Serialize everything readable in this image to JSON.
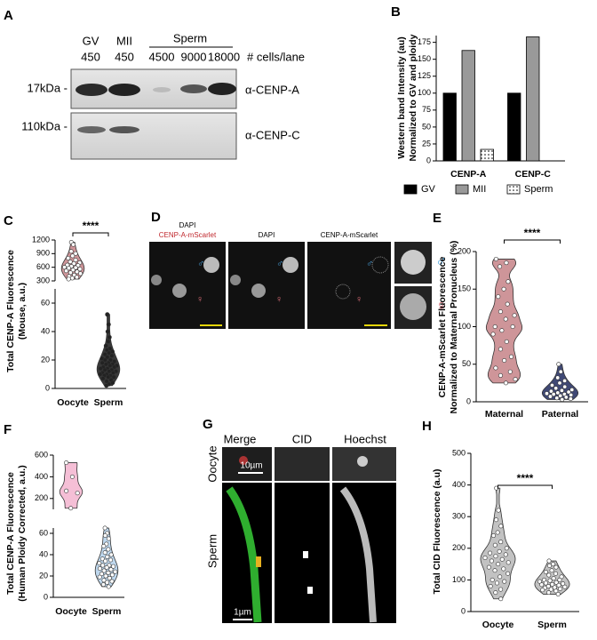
{
  "blot": {
    "panel": "A",
    "lanes": [
      "GV",
      "MII"
    ],
    "group": "Sperm",
    "counts": [
      450,
      450,
      4500,
      9000,
      18000
    ],
    "counts_label": "# cells/lane",
    "markers": [
      "17kDa -",
      "110kDa -"
    ],
    "antibodies": [
      "α-CENP-A",
      "α-CENP-C"
    ]
  },
  "image_d": {
    "panel": "D",
    "merge_title": [
      "DAPI",
      "CENP-A-mScarlet"
    ],
    "columns": [
      "DAPI",
      "CENP-A-mScarlet"
    ],
    "symbols": [
      "♂",
      "♀"
    ]
  },
  "image_g": {
    "panel": "G",
    "columns": [
      "Merge",
      "CID",
      "Hoechst"
    ],
    "rows": [
      "Oocyte",
      "Sperm"
    ],
    "scale_bars": [
      "10µm",
      "1µm"
    ]
  },
  "chart_data": [
    {
      "type": "bar",
      "panel": "B",
      "ylabel": [
        "Western band Intensity (au)",
        "Normalized to GV and ploidy"
      ],
      "categories": [
        "CENP-A",
        "CENP-C"
      ],
      "series": [
        {
          "name": "GV",
          "color": "#000000",
          "values": [
            100,
            100
          ]
        },
        {
          "name": "MII",
          "color": "#999999",
          "values": [
            163,
            183
          ]
        },
        {
          "name": "Sperm",
          "color": "#ffffff",
          "hatch": "dots",
          "values": [
            17,
            null
          ]
        }
      ],
      "ylim": [
        0,
        185
      ],
      "yticks": [
        0,
        25,
        50,
        75,
        100,
        125,
        150,
        175
      ]
    },
    {
      "type": "violin",
      "panel": "C",
      "ylabel": [
        "Total CENP-A Fluorescence",
        "(Mouse, a.u.)"
      ],
      "significance": "****",
      "categories": [
        "Oocyte",
        "Sperm"
      ],
      "colors": [
        "#c98a8e",
        "#222222"
      ],
      "segments": [
        {
          "ylim": [
            0,
            70
          ],
          "yticks": [
            0,
            20,
            40,
            60
          ]
        },
        {
          "ylim": [
            300,
            1200
          ],
          "yticks": [
            300,
            600,
            900,
            1200
          ]
        }
      ],
      "values": [
        [
          1150,
          1100,
          950,
          900,
          850,
          800,
          760,
          720,
          700,
          680,
          650,
          640,
          620,
          600,
          590,
          580,
          560,
          540,
          520,
          500,
          480,
          460,
          430,
          400,
          380,
          360,
          340
        ],
        [
          52,
          45,
          40,
          36,
          33,
          30,
          28,
          27,
          26,
          25,
          24,
          23,
          22,
          21,
          20,
          20,
          19,
          18,
          18,
          17,
          17,
          16,
          16,
          15,
          15,
          14,
          14,
          13,
          13,
          12,
          12,
          11,
          11,
          10,
          10,
          9,
          9,
          8,
          8,
          7,
          6,
          5,
          4,
          3,
          2
        ]
      ]
    },
    {
      "type": "violin",
      "panel": "E",
      "ylabel": [
        "CENP-A-mScarlet Fluorescence",
        "Normalized to Maternal Pronucleus (%)"
      ],
      "significance": "****",
      "categories": [
        "Maternal",
        "Paternal"
      ],
      "colors": [
        "#c98a8e",
        "#2b3566"
      ],
      "ylim": [
        0,
        200
      ],
      "yticks": [
        0,
        50,
        100,
        150,
        200
      ],
      "values": [
        [
          190,
          185,
          180,
          160,
          150,
          140,
          130,
          120,
          115,
          110,
          100,
          100,
          95,
          90,
          80,
          70,
          60,
          55,
          45,
          40,
          35,
          30,
          25
        ],
        [
          50,
          40,
          32,
          28,
          25,
          22,
          20,
          18,
          16,
          15,
          14,
          13,
          12,
          11,
          10,
          10,
          9,
          8,
          7,
          6,
          5,
          4,
          3
        ]
      ]
    },
    {
      "type": "violin",
      "panel": "F",
      "ylabel": [
        "Total CENP-A Fluorescence",
        "(Human Ploidy Corrected, a.u.)"
      ],
      "categories": [
        "Oocyte",
        "Sperm"
      ],
      "colors": [
        "#f4b8d1",
        "#b8d4ec"
      ],
      "segments": [
        {
          "ylim": [
            0,
            65
          ],
          "yticks": [
            0,
            20,
            40,
            60
          ]
        },
        {
          "ylim": [
            100,
            600
          ],
          "yticks": [
            200,
            400,
            600
          ]
        }
      ],
      "values": [
        [
          530,
          400,
          270,
          250,
          110
        ],
        [
          65,
          60,
          58,
          55,
          50,
          48,
          45,
          42,
          40,
          38,
          36,
          35,
          34,
          32,
          30,
          30,
          29,
          28,
          27,
          26,
          25,
          24,
          23,
          22,
          21,
          20,
          19,
          18,
          16,
          15,
          14,
          12,
          10
        ]
      ]
    },
    {
      "type": "violin",
      "panel": "H",
      "ylabel": [
        "Total CID Fluorescence (a.u)"
      ],
      "significance": "****",
      "categories": [
        "Oocyte",
        "Sperm"
      ],
      "colors": [
        "#bbbbbb",
        "#bbbbbb"
      ],
      "ylim": [
        0,
        500
      ],
      "yticks": [
        0,
        100,
        200,
        300,
        400,
        500
      ],
      "values": [
        [
          390,
          320,
          290,
          270,
          250,
          240,
          220,
          210,
          200,
          190,
          185,
          180,
          175,
          170,
          165,
          160,
          155,
          150,
          140,
          135,
          130,
          120,
          110,
          100,
          95,
          90,
          80,
          70,
          60,
          40
        ],
        [
          160,
          150,
          145,
          140,
          130,
          125,
          120,
          115,
          110,
          105,
          100,
          100,
          98,
          95,
          92,
          90,
          88,
          86,
          85,
          83,
          80,
          78,
          76,
          75,
          72,
          70,
          68,
          65,
          60,
          55
        ]
      ]
    }
  ]
}
